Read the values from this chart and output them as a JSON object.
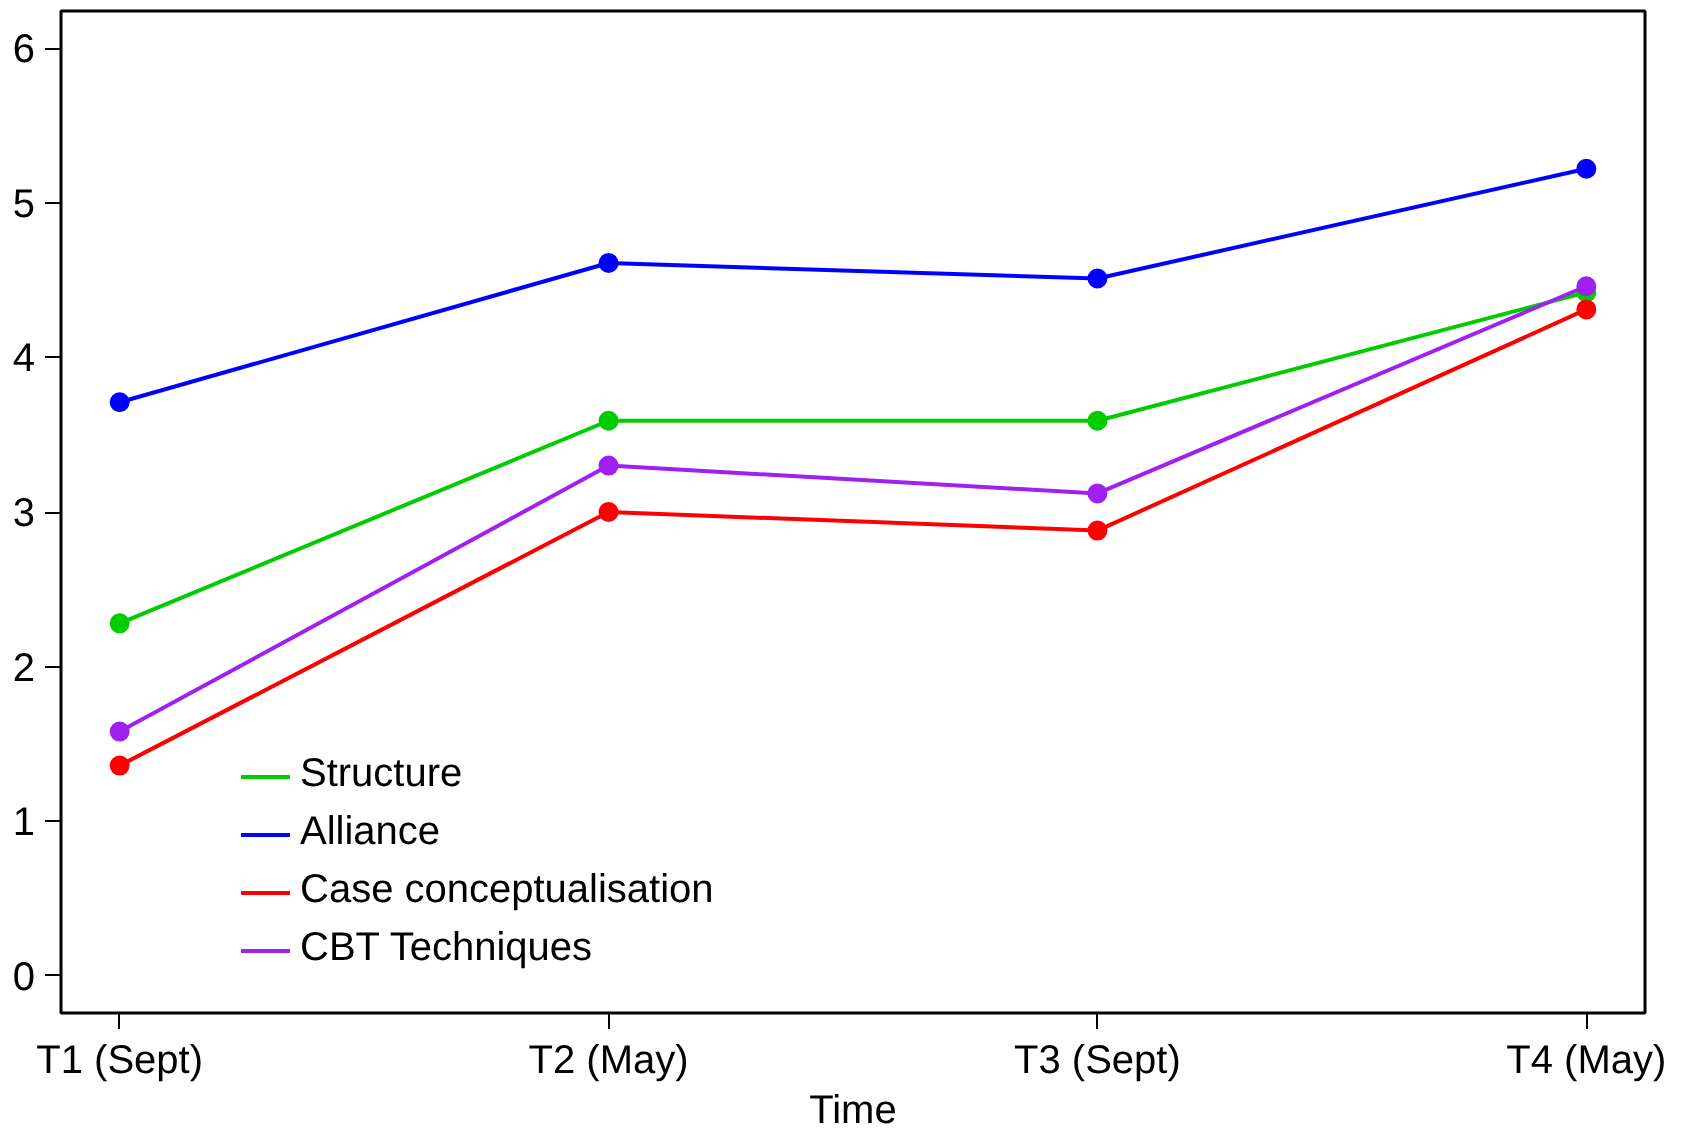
{
  "chart_data": {
    "type": "line",
    "xlabel": "Time",
    "categories": [
      "T1 (Sept)",
      "T2 (May)",
      "T3 (Sept)",
      "T4 (May)"
    ],
    "ylim": [
      -0.24,
      6.24
    ],
    "yticks": [
      0,
      1,
      2,
      3,
      4,
      5,
      6
    ],
    "series": [
      {
        "name": "Structure",
        "color": "#00cc00",
        "values": [
          2.28,
          3.59,
          3.59,
          4.42
        ]
      },
      {
        "name": "Alliance",
        "color": "#0000ff",
        "values": [
          3.71,
          4.61,
          4.51,
          5.22
        ]
      },
      {
        "name": "Case conceptualisation",
        "color": "#ff0000",
        "values": [
          1.36,
          3.0,
          2.88,
          4.31
        ]
      },
      {
        "name": "CBT Techniques",
        "color": "#a020f0",
        "values": [
          1.58,
          3.3,
          3.12,
          4.46
        ]
      }
    ],
    "marker": "circle",
    "grid": false,
    "legend": "bottom left"
  }
}
